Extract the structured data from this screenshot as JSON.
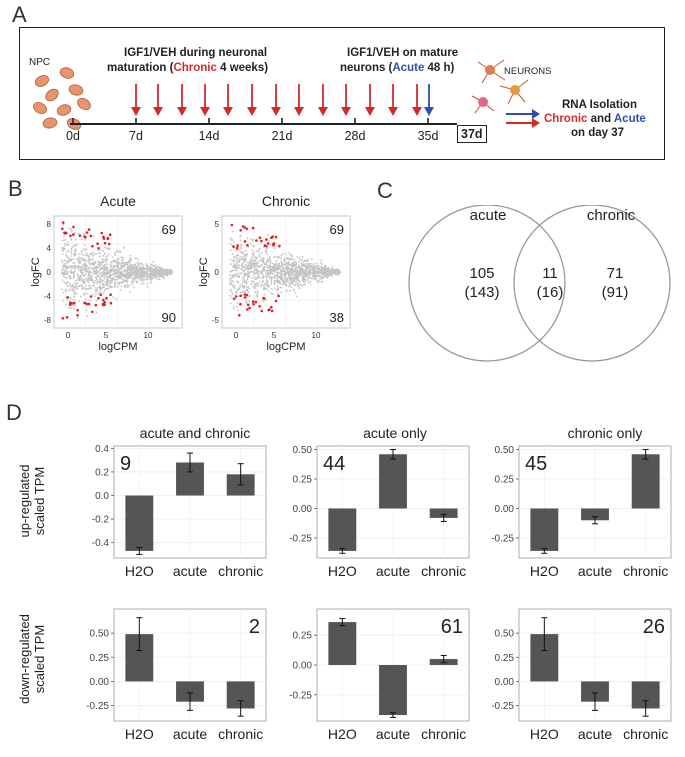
{
  "panels": {
    "a": "A",
    "b": "B",
    "c": "C",
    "d": "D"
  },
  "timeline": {
    "npc": "NPC",
    "chronic_line1": "IGF1/VEH during neuronal",
    "chronic_pre": "maturation (",
    "chronic_word": "Chronic",
    "chronic_post": " 4 weeks)",
    "acute_line1": "IGF1/VEH on mature",
    "acute_pre": "neurons (",
    "acute_word": "Acute",
    "acute_post": " 48 h)",
    "neurons": "NEURONS",
    "rna_line1": "RNA Isolation",
    "rna_chronic": "Chronic",
    "rna_and": " and ",
    "rna_acute": "Acute",
    "rna_line3": "on day 37",
    "days": [
      "0d",
      "7d",
      "14d",
      "21d",
      "28d",
      "35d"
    ],
    "final_day": "37d",
    "colors": {
      "red": "#d62a2a",
      "blue": "#2e4fb0"
    }
  },
  "ma_plots": [
    {
      "title": "Acute",
      "xlabel": "logCPM",
      "ylabel": "logFC",
      "up": "69",
      "down": "90",
      "yticks": [
        "8",
        "4",
        "0",
        "-4",
        "-8"
      ],
      "xticks": [
        "0",
        "5",
        "10"
      ]
    },
    {
      "title": "Chronic",
      "xlabel": "logCPM",
      "ylabel": "logFC",
      "up": "69",
      "down": "38",
      "yticks": [
        "5",
        "0",
        "-5"
      ],
      "xticks": [
        "0",
        "5",
        "10"
      ]
    }
  ],
  "venn": {
    "left_label": "acute",
    "right_label": "chronic",
    "left_count": "105",
    "left_paren": "(143)",
    "mid_count": "11",
    "mid_paren": "(16)",
    "right_count": "71",
    "right_paren": "(91)"
  },
  "bar_section": {
    "titles": [
      "acute and chronic",
      "acute only",
      "chronic only"
    ],
    "row_labels": [
      [
        "up-regulated",
        "scaled TPM"
      ],
      [
        "down-regulated",
        "scaled TPM"
      ]
    ]
  },
  "chart_data": [
    {
      "type": "bar",
      "row": "up",
      "title": "acute and chronic",
      "count": "9",
      "categories": [
        "H2O",
        "acute",
        "chronic"
      ],
      "values": [
        -0.47,
        0.28,
        0.18
      ],
      "errors": [
        0.03,
        0.08,
        0.09
      ],
      "ylim": [
        -0.53,
        0.42
      ],
      "yticks": [
        -0.4,
        -0.2,
        0.0,
        0.2,
        0.4
      ],
      "ytick_labels": [
        "-0.4",
        "-0.2",
        "0.0",
        "0.2",
        "0.4"
      ],
      "count_pos": "top-left"
    },
    {
      "type": "bar",
      "row": "up",
      "title": "acute only",
      "count": "44",
      "categories": [
        "H2O",
        "acute",
        "chronic"
      ],
      "values": [
        -0.36,
        0.46,
        -0.08
      ],
      "errors": [
        0.02,
        0.04,
        0.03
      ],
      "ylim": [
        -0.42,
        0.53
      ],
      "yticks": [
        -0.25,
        0.0,
        0.25,
        0.5
      ],
      "ytick_labels": [
        "-0.25",
        "0.00",
        "0.25",
        "0.50"
      ],
      "count_pos": "top-left"
    },
    {
      "type": "bar",
      "row": "up",
      "title": "chronic only",
      "count": "45",
      "categories": [
        "H2O",
        "acute",
        "chronic"
      ],
      "values": [
        -0.36,
        -0.1,
        0.46
      ],
      "errors": [
        0.02,
        0.03,
        0.04
      ],
      "ylim": [
        -0.42,
        0.53
      ],
      "yticks": [
        -0.25,
        0.0,
        0.25,
        0.5
      ],
      "ytick_labels": [
        "-0.25",
        "0.00",
        "0.25",
        "0.50"
      ],
      "count_pos": "top-left"
    },
    {
      "type": "bar",
      "row": "down",
      "title": "",
      "count": "2",
      "categories": [
        "H2O",
        "acute",
        "chronic"
      ],
      "values": [
        0.49,
        -0.21,
        -0.28
      ],
      "errors": [
        0.17,
        0.09,
        0.08
      ],
      "ylim": [
        -0.41,
        0.75
      ],
      "yticks": [
        -0.25,
        0.0,
        0.25,
        0.5
      ],
      "ytick_labels": [
        "-0.25",
        "0.00",
        "0.25",
        "0.50"
      ],
      "count_pos": "top-right"
    },
    {
      "type": "bar",
      "row": "down",
      "title": "",
      "count": "61",
      "categories": [
        "H2O",
        "acute",
        "chronic"
      ],
      "values": [
        0.36,
        -0.42,
        0.05
      ],
      "errors": [
        0.03,
        0.02,
        0.03
      ],
      "ylim": [
        -0.47,
        0.47
      ],
      "yticks": [
        -0.25,
        0.0,
        0.25
      ],
      "ytick_labels": [
        "-0.25",
        "0.00",
        "0.25"
      ],
      "count_pos": "top-right"
    },
    {
      "type": "bar",
      "row": "down",
      "title": "",
      "count": "26",
      "categories": [
        "H2O",
        "acute",
        "chronic"
      ],
      "values": [
        0.49,
        -0.21,
        -0.28
      ],
      "errors": [
        0.17,
        0.09,
        0.08
      ],
      "ylim": [
        -0.41,
        0.75
      ],
      "yticks": [
        -0.25,
        0.0,
        0.25,
        0.5
      ],
      "ytick_labels": [
        "-0.25",
        "0.00",
        "0.25",
        "0.50"
      ],
      "count_pos": "top-right"
    }
  ]
}
